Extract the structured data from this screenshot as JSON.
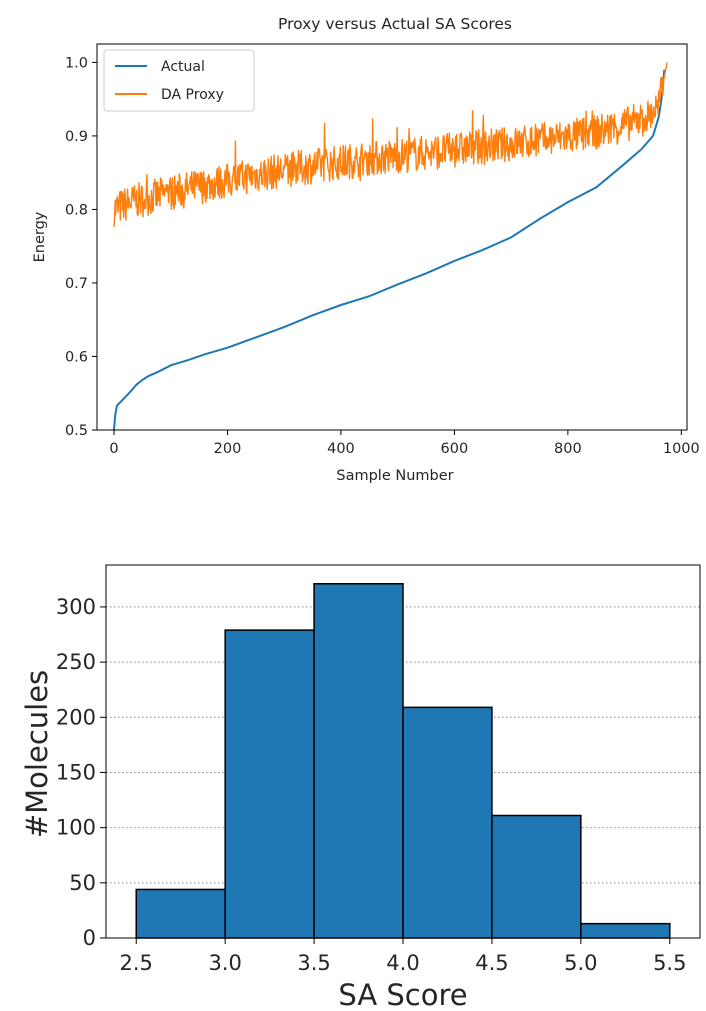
{
  "chart_data": [
    {
      "type": "line",
      "title": "Proxy versus Actual SA Scores",
      "xlabel": "Sample Number",
      "ylabel": "Energy",
      "xlim": [
        -30,
        1010
      ],
      "ylim": [
        0.5,
        1.025
      ],
      "xticks": [
        0,
        200,
        400,
        600,
        800,
        1000
      ],
      "yticks": [
        0.5,
        0.6,
        0.7,
        0.8,
        0.9,
        1.0
      ],
      "xtick_labels": [
        "0",
        "200",
        "400",
        "600",
        "800",
        "1000"
      ],
      "ytick_labels": [
        "0.5",
        "0.6",
        "0.7",
        "0.8",
        "0.9",
        "1.0"
      ],
      "grid": false,
      "legend": "top-left",
      "series": [
        {
          "name": "Actual",
          "color": "#1f77b4",
          "x": [
            0,
            2,
            5,
            10,
            20,
            30,
            40,
            50,
            60,
            80,
            100,
            130,
            160,
            200,
            250,
            300,
            350,
            400,
            450,
            500,
            550,
            600,
            650,
            700,
            750,
            800,
            850,
            900,
            930,
            950,
            960,
            965,
            970
          ],
          "y": [
            0.5,
            0.52,
            0.533,
            0.537,
            0.545,
            0.553,
            0.562,
            0.568,
            0.573,
            0.58,
            0.588,
            0.595,
            0.603,
            0.612,
            0.626,
            0.64,
            0.656,
            0.67,
            0.682,
            0.698,
            0.713,
            0.73,
            0.745,
            0.762,
            0.787,
            0.81,
            0.83,
            0.862,
            0.882,
            0.9,
            0.925,
            0.95,
            0.99
          ]
        },
        {
          "name": "DA Proxy",
          "color": "#ff7f0e",
          "x": [
            0,
            30,
            60,
            100,
            150,
            200,
            250,
            300,
            350,
            400,
            450,
            500,
            550,
            600,
            650,
            700,
            750,
            800,
            850,
            900,
            940,
            960,
            975
          ],
          "y": [
            0.8,
            0.81,
            0.815,
            0.823,
            0.831,
            0.839,
            0.847,
            0.853,
            0.859,
            0.864,
            0.869,
            0.873,
            0.877,
            0.881,
            0.885,
            0.889,
            0.894,
            0.899,
            0.905,
            0.915,
            0.925,
            0.94,
            1.0
          ],
          "noise_amplitude": 0.03
        }
      ]
    },
    {
      "type": "bar",
      "subtype": "histogram",
      "xlabel": "SA Score",
      "ylabel": "#Molecules",
      "bin_edges": [
        2.5,
        3.0,
        3.5,
        4.0,
        4.5,
        5.0,
        5.5
      ],
      "values": [
        44,
        279,
        321,
        209,
        111,
        13
      ],
      "color": "#1f77b4",
      "edgecolor": "#000000",
      "xlim": [
        2.33,
        5.67
      ],
      "ylim": [
        0,
        338
      ],
      "xticks": [
        2.5,
        3.0,
        3.5,
        4.0,
        4.5,
        5.0,
        5.5
      ],
      "yticks": [
        0,
        50,
        100,
        150,
        200,
        250,
        300
      ],
      "xtick_labels": [
        "2.5",
        "3.0",
        "3.5",
        "4.0",
        "4.5",
        "5.0",
        "5.5"
      ],
      "ytick_labels": [
        "0",
        "50",
        "100",
        "150",
        "200",
        "250",
        "300"
      ],
      "grid": "horizontal dotted"
    }
  ]
}
